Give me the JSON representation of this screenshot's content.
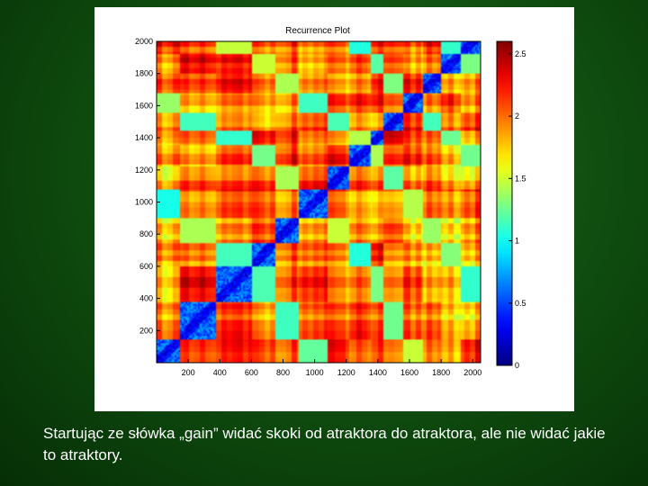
{
  "caption": "Startując ze słówka „gain” widać skoki od atraktora do atraktora, ale nie widać jakie to atraktory.",
  "chart_data": {
    "type": "heatmap",
    "title": "Recurrence Plot",
    "xlabel": "",
    "ylabel": "",
    "xlim": [
      0,
      2050
    ],
    "ylim": [
      0,
      2000
    ],
    "x_ticks": [
      200,
      400,
      600,
      800,
      1000,
      1200,
      1400,
      1600,
      1800,
      2000
    ],
    "y_ticks": [
      200,
      400,
      600,
      800,
      1000,
      1200,
      1400,
      1600,
      1800,
      2000
    ],
    "x_tick_labels": [
      "200",
      "400",
      "600",
      "800",
      "1000",
      "1200",
      "1400",
      "1600",
      "1800",
      "2000"
    ],
    "y_tick_labels": [
      "200",
      "400",
      "600",
      "800",
      "1000",
      "1200",
      "1400",
      "1600",
      "1800",
      "2000"
    ],
    "colorbar": {
      "min": 0,
      "max": 2.6,
      "ticks": [
        0,
        0.5,
        1,
        1.5,
        2,
        2.5
      ],
      "tick_labels": [
        "0",
        "0.5",
        "1",
        "1.5",
        "2",
        "2.5"
      ],
      "colormap": "jet"
    },
    "grid": false,
    "low_distance_blocks": [
      [
        0,
        150
      ],
      [
        150,
        380
      ],
      [
        380,
        600
      ],
      [
        600,
        750
      ],
      [
        750,
        900
      ],
      [
        900,
        1080
      ],
      [
        1080,
        1220
      ],
      [
        1220,
        1360
      ],
      [
        1360,
        1440
      ],
      [
        1440,
        1560
      ],
      [
        1560,
        1680
      ],
      [
        1680,
        1800
      ],
      [
        1800,
        1920
      ],
      [
        1920,
        2000
      ]
    ]
  }
}
